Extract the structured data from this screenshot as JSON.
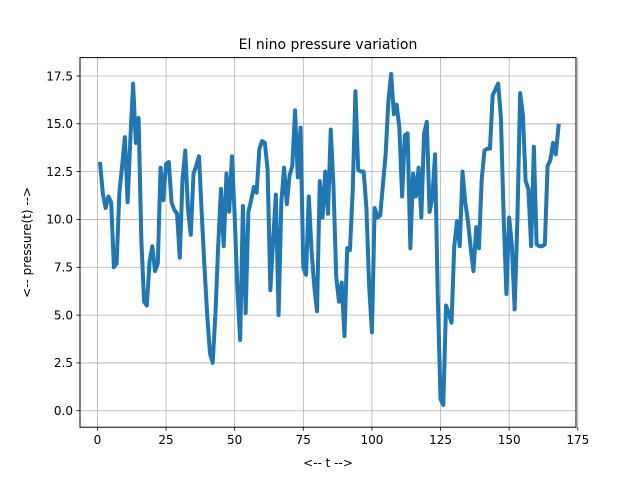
{
  "chart_data": {
    "type": "line",
    "title": "El nino pressure variation",
    "xlabel": "<-- t -->",
    "ylabel": "<-- pressure(t)  -->",
    "xlim": [
      -6.35,
      174.35
    ],
    "ylim": [
      -0.86,
      18.46
    ],
    "xticks": [
      0,
      25,
      50,
      75,
      100,
      125,
      150,
      175
    ],
    "yticks": [
      0.0,
      2.5,
      5.0,
      7.5,
      10.0,
      12.5,
      15.0,
      17.5
    ],
    "xtick_labels": [
      "0",
      "25",
      "50",
      "75",
      "100",
      "125",
      "150",
      "175"
    ],
    "ytick_labels": [
      "0.0",
      "2.5",
      "5.0",
      "7.5",
      "10.0",
      "12.5",
      "15.0",
      "17.5"
    ],
    "grid": true,
    "line_color": "#1f77b4",
    "series": [
      {
        "x": [
          1,
          2,
          3,
          4,
          5,
          6,
          7,
          8,
          9,
          10,
          11,
          12,
          13,
          14,
          15,
          16,
          17,
          18,
          19,
          20,
          21,
          22,
          23,
          24,
          25,
          26,
          27,
          28,
          29,
          30,
          31,
          32,
          33,
          34,
          35,
          36,
          37,
          38,
          39,
          40,
          41,
          42,
          43,
          44,
          45,
          46,
          47,
          48,
          49,
          50,
          51,
          52,
          53,
          54,
          55,
          56,
          57,
          58,
          59,
          60,
          61,
          62,
          63,
          64,
          65,
          66,
          67,
          68,
          69,
          70,
          71,
          72,
          73,
          74,
          75,
          76,
          77,
          78,
          79,
          80,
          81,
          82,
          83,
          84,
          85,
          86,
          87,
          88,
          89,
          90,
          91,
          92,
          93,
          94,
          95,
          96,
          97,
          98,
          99,
          100,
          101,
          102,
          103,
          104,
          105,
          106,
          107,
          108,
          109,
          110,
          111,
          112,
          113,
          114,
          115,
          116,
          117,
          118,
          119,
          120,
          121,
          122,
          123,
          124,
          125,
          126,
          127,
          128,
          129,
          130,
          131,
          132,
          133,
          134,
          135,
          136,
          137,
          138,
          139,
          140,
          141,
          142,
          143,
          144,
          145,
          146,
          147,
          148,
          149,
          150,
          151,
          152,
          153,
          154,
          155,
          156,
          157,
          158,
          159,
          160,
          161,
          162,
          163,
          164,
          165,
          166,
          167,
          168
        ],
        "values": [
          12.9,
          11.3,
          10.6,
          11.2,
          10.9,
          7.5,
          7.7,
          11.4,
          12.8,
          14.3,
          10.9,
          14.2,
          17.1,
          14.0,
          15.3,
          8.9,
          5.7,
          5.5,
          7.8,
          8.6,
          7.3,
          7.7,
          12.7,
          11.0,
          12.9,
          13.0,
          10.9,
          10.5,
          10.3,
          8.0,
          12.1,
          13.6,
          10.5,
          9.2,
          12.4,
          12.8,
          13.3,
          10.3,
          7.5,
          5.0,
          3.0,
          2.5,
          5.1,
          8.6,
          11.6,
          8.6,
          12.4,
          10.4,
          13.3,
          10.2,
          6.3,
          3.7,
          10.7,
          5.1,
          10.4,
          11.0,
          11.7,
          11.4,
          13.7,
          14.1,
          14.0,
          12.6,
          6.3,
          8.9,
          11.3,
          5.0,
          10.9,
          12.7,
          10.8,
          12.3,
          12.8,
          15.7,
          12.2,
          14.8,
          7.5,
          7.1,
          11.2,
          8.4,
          6.5,
          5.2,
          12.0,
          10.1,
          12.5,
          10.3,
          14.7,
          11.7,
          7.0,
          5.7,
          6.7,
          3.9,
          8.5,
          8.4,
          11.5,
          16.7,
          12.6,
          12.5,
          12.5,
          10.6,
          6.5,
          4.1,
          10.6,
          10.1,
          10.2,
          11.8,
          13.4,
          16.2,
          17.6,
          15.5,
          16.0,
          14.8,
          11.2,
          14.4,
          14.5,
          8.5,
          12.4,
          11.2,
          12.7,
          10.1,
          14.5,
          15.1,
          10.4,
          11.1,
          13.4,
          5.9,
          0.6,
          0.3,
          5.5,
          5.1,
          4.6,
          8.6,
          9.9,
          8.6,
          12.5,
          10.9,
          9.9,
          8.5,
          7.3,
          9.6,
          8.5,
          12.1,
          13.6,
          13.7,
          13.7,
          16.5,
          16.8,
          17.1,
          15.3,
          10.1,
          6.1,
          10.1,
          8.6,
          5.3,
          10.0,
          16.6,
          15.5,
          12.0,
          11.6,
          8.6,
          13.8,
          8.7,
          8.6,
          8.6,
          8.7,
          12.8,
          13.1,
          14.0,
          13.4,
          14.9
        ]
      }
    ]
  }
}
